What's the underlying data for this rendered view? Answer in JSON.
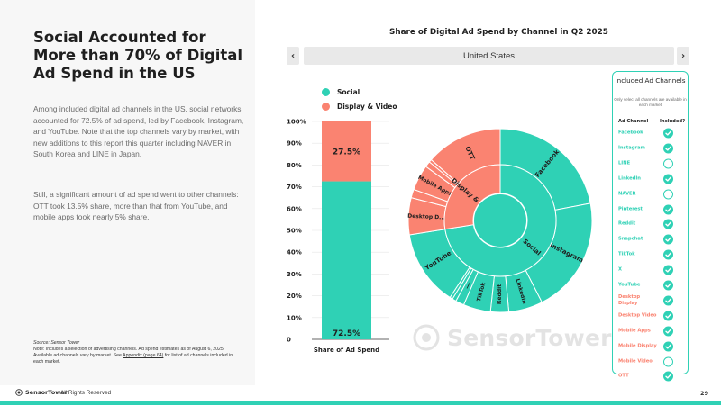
{
  "headline": "Social Accounted for More than 70% of Digital Ad Spend in the US",
  "paragraphs": [
    "Among included digital ad channels in the US, social networks accounted for 72.5% of ad spend, led by Facebook, Instagram, and YouTube. Note that the top channels vary by market, with new additions to this report this quarter including NAVER in South Korea and LINE in Japan.",
    "Still, a significant amount of ad spend went to other channels: OTT took 13.5% share, more than that from YouTube, and mobile apps took nearly 5% share."
  ],
  "source": {
    "title": "Source: Sensor Tower",
    "note_before": "Note: Includes a selection of advertising channels. Ad spend estimates as of August 6, 2025. Available ad channels vary by market. See ",
    "link": "Appendix (page 64)",
    "note_after": " for list of ad channels included in each market."
  },
  "footer": {
    "brand": "SensorTower",
    "rights": "All Rights Reserved",
    "page": "29"
  },
  "chart_title": "Share of Digital Ad Spend by Channel in Q2 2025",
  "market": {
    "selected": "United States",
    "prev": "‹",
    "next": "›"
  },
  "legend": [
    {
      "label": "Social",
      "color": "#2fd1b5"
    },
    {
      "label": "Display & Video",
      "color": "#fa8371"
    }
  ],
  "colors": {
    "social": "#2fd1b5",
    "display": "#fa8371",
    "check": "#2fd1b5"
  },
  "watermark": "SensorTower",
  "chart_data": [
    {
      "type": "bar",
      "stacked": true,
      "categories": [
        "Share of Ad Spend"
      ],
      "series": [
        {
          "name": "Social",
          "values": [
            72.5
          ],
          "label": "72.5%"
        },
        {
          "name": "Display & Video",
          "values": [
            27.5
          ],
          "label": "27.5%"
        }
      ],
      "yticks": [
        "0",
        "10%",
        "20%",
        "30%",
        "40%",
        "50%",
        "60%",
        "70%",
        "80%",
        "90%",
        "100%"
      ],
      "ylim": [
        0,
        100
      ],
      "xlabel": "Share of Ad Spend"
    },
    {
      "type": "pie",
      "subtype": "sunburst",
      "inner": [
        {
          "label": "Social",
          "value": 72.5,
          "group": "social"
        },
        {
          "label": "Display & ...",
          "value": 27.5,
          "group": "display"
        }
      ],
      "outer": [
        {
          "label": "Facebook",
          "value": 22.0,
          "group": "social"
        },
        {
          "label": "Instagram",
          "value": 20.5,
          "group": "social"
        },
        {
          "label": "LinkedIn",
          "value": 6.0,
          "group": "social"
        },
        {
          "label": "Reddit",
          "value": 3.2,
          "group": "social"
        },
        {
          "label": "TikTok",
          "value": 4.8,
          "group": "social"
        },
        {
          "label": "X",
          "value": 1.5,
          "group": "social"
        },
        {
          "label": "",
          "value": 0.7,
          "group": "social"
        },
        {
          "label": "",
          "value": 0.5,
          "group": "social"
        },
        {
          "label": "YouTube",
          "value": 13.3,
          "group": "social"
        },
        {
          "label": "Desktop D...",
          "value": 6.5,
          "group": "display"
        },
        {
          "label": "",
          "value": 1.5,
          "group": "display"
        },
        {
          "label": "Mobile Apps",
          "value": 4.5,
          "group": "display"
        },
        {
          "label": "",
          "value": 1.0,
          "group": "display"
        },
        {
          "label": "",
          "value": 0.5,
          "group": "display"
        },
        {
          "label": "OTT",
          "value": 13.5,
          "group": "display"
        }
      ]
    }
  ],
  "channel_panel": {
    "title": "Included Ad Channels",
    "note": "Only select all channels are available in each market",
    "col_channel": "Ad Channel",
    "col_included": "Included?",
    "rows": [
      {
        "name": "Facebook",
        "group": "social",
        "included": true
      },
      {
        "name": "Instagram",
        "group": "social",
        "included": true
      },
      {
        "name": "LINE",
        "group": "social",
        "included": false
      },
      {
        "name": "LinkedIn",
        "group": "social",
        "included": true
      },
      {
        "name": "NAVER",
        "group": "social",
        "included": false
      },
      {
        "name": "Pinterest",
        "group": "social",
        "included": true
      },
      {
        "name": "Reddit",
        "group": "social",
        "included": true
      },
      {
        "name": "Snapchat",
        "group": "social",
        "included": true
      },
      {
        "name": "TikTok",
        "group": "social",
        "included": true
      },
      {
        "name": "X",
        "group": "social",
        "included": true
      },
      {
        "name": "YouTube",
        "group": "social",
        "included": true
      },
      {
        "name": "Desktop Display",
        "group": "display",
        "included": true
      },
      {
        "name": "Desktop Video",
        "group": "display",
        "included": true
      },
      {
        "name": "Mobile Apps",
        "group": "display",
        "included": true
      },
      {
        "name": "Mobile Display",
        "group": "display",
        "included": true
      },
      {
        "name": "Mobile Video",
        "group": "display",
        "included": false
      },
      {
        "name": "OTT",
        "group": "display",
        "included": true
      }
    ]
  }
}
